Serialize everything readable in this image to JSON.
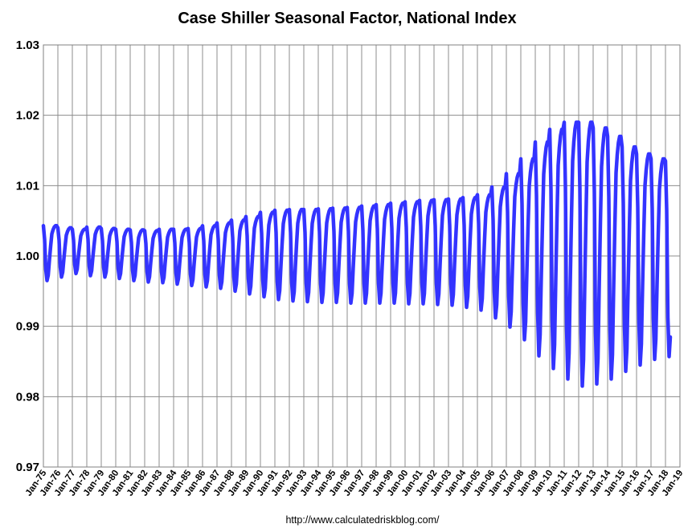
{
  "chart_data": {
    "type": "line",
    "title": "Case Shiller Seasonal Factor, National Index",
    "source_note": "http://www.calculatedriskblog.com/",
    "xlabel": "",
    "ylabel": "",
    "x_tick_labels": [
      "Jan-75",
      "Jan-76",
      "Jan-77",
      "Jan-78",
      "Jan-79",
      "Jan-80",
      "Jan-81",
      "Jan-82",
      "Jan-83",
      "Jan-84",
      "Jan-85",
      "Jan-86",
      "Jan-87",
      "Jan-88",
      "Jan-89",
      "Jan-90",
      "Jan-91",
      "Jan-92",
      "Jan-93",
      "Jan-94",
      "Jan-95",
      "Jan-96",
      "Jan-97",
      "Jan-98",
      "Jan-99",
      "Jan-00",
      "Jan-01",
      "Jan-02",
      "Jan-03",
      "Jan-04",
      "Jan-05",
      "Jan-06",
      "Jan-07",
      "Jan-08",
      "Jan-09",
      "Jan-10",
      "Jan-11",
      "Jan-12",
      "Jan-13",
      "Jan-14",
      "Jan-15",
      "Jan-16",
      "Jan-17",
      "Jan-18",
      "Jan-19"
    ],
    "y_tick_labels": [
      "0.97",
      "0.98",
      "0.99",
      "1.00",
      "1.01",
      "1.02",
      "1.03"
    ],
    "y_ticks": [
      0.97,
      0.98,
      0.99,
      1.0,
      1.01,
      1.02,
      1.03
    ],
    "ylim": [
      0.97,
      1.03
    ],
    "x_start": "Jan-75",
    "x_end": "Jan-19",
    "grid": true,
    "line_color": "#3333FF",
    "series": [
      {
        "frequency": "monthly",
        "start": "Jan-75",
        "end": "May-18",
        "annual_peak": [
          1.0043,
          1.004,
          1.0038,
          1.0041,
          1.0039,
          1.0038,
          1.0037,
          1.0036,
          1.0038,
          1.0038,
          1.0039,
          1.0043,
          1.0047,
          1.0051,
          1.0056,
          1.0062,
          1.0065,
          1.0066,
          1.0066,
          1.0067,
          1.0068,
          1.0069,
          1.0071,
          1.0073,
          1.0075,
          1.0077,
          1.0079,
          1.008,
          1.0081,
          1.0083,
          1.0087,
          1.0098,
          1.0117,
          1.0138,
          1.0162,
          1.018,
          1.019,
          1.019,
          1.0182,
          1.017,
          1.0155,
          1.0145,
          1.0138,
          1.0135
        ],
        "annual_trough": [
          0.9965,
          0.997,
          0.9975,
          0.9972,
          0.997,
          0.9968,
          0.9965,
          0.9963,
          0.9962,
          0.996,
          0.9958,
          0.9956,
          0.9954,
          0.995,
          0.9946,
          0.9942,
          0.9938,
          0.9936,
          0.9935,
          0.9934,
          0.9934,
          0.9933,
          0.9933,
          0.9933,
          0.9933,
          0.9932,
          0.9932,
          0.9931,
          0.993,
          0.9927,
          0.9923,
          0.9912,
          0.9899,
          0.9881,
          0.9858,
          0.984,
          0.9825,
          0.9815,
          0.9818,
          0.9825,
          0.9836,
          0.9845,
          0.9853,
          0.9857
        ]
      }
    ]
  }
}
